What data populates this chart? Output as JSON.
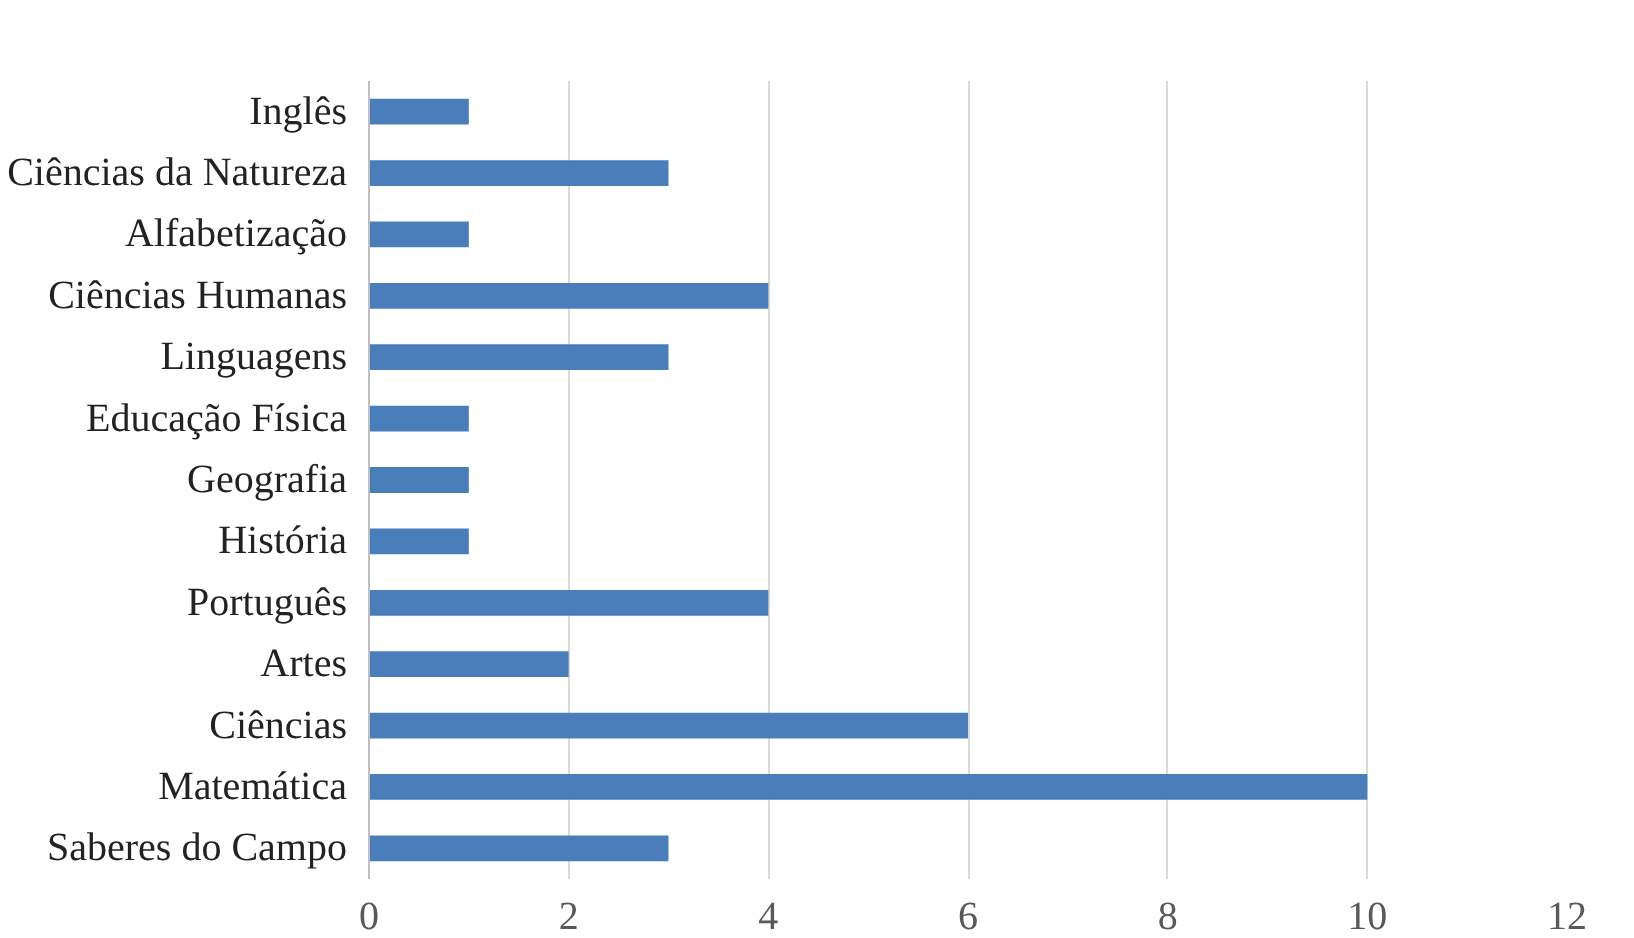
{
  "chart_data": {
    "type": "bar",
    "orientation": "horizontal",
    "categories": [
      "Inglês",
      "Ciências da Natureza",
      "Alfabetização",
      "Ciências Humanas",
      "Linguagens",
      "Educação Física",
      "Geografia",
      "História",
      "Português",
      "Artes",
      "Ciências",
      "Matemática",
      "Saberes do Campo"
    ],
    "values": [
      1,
      3,
      1,
      4,
      3,
      1,
      1,
      1,
      4,
      2,
      6,
      10,
      3
    ],
    "color": "#4a7ebb",
    "xlim": [
      0,
      12
    ],
    "xticks": [
      0,
      2,
      4,
      6,
      8,
      10,
      12
    ],
    "grid": "x"
  }
}
